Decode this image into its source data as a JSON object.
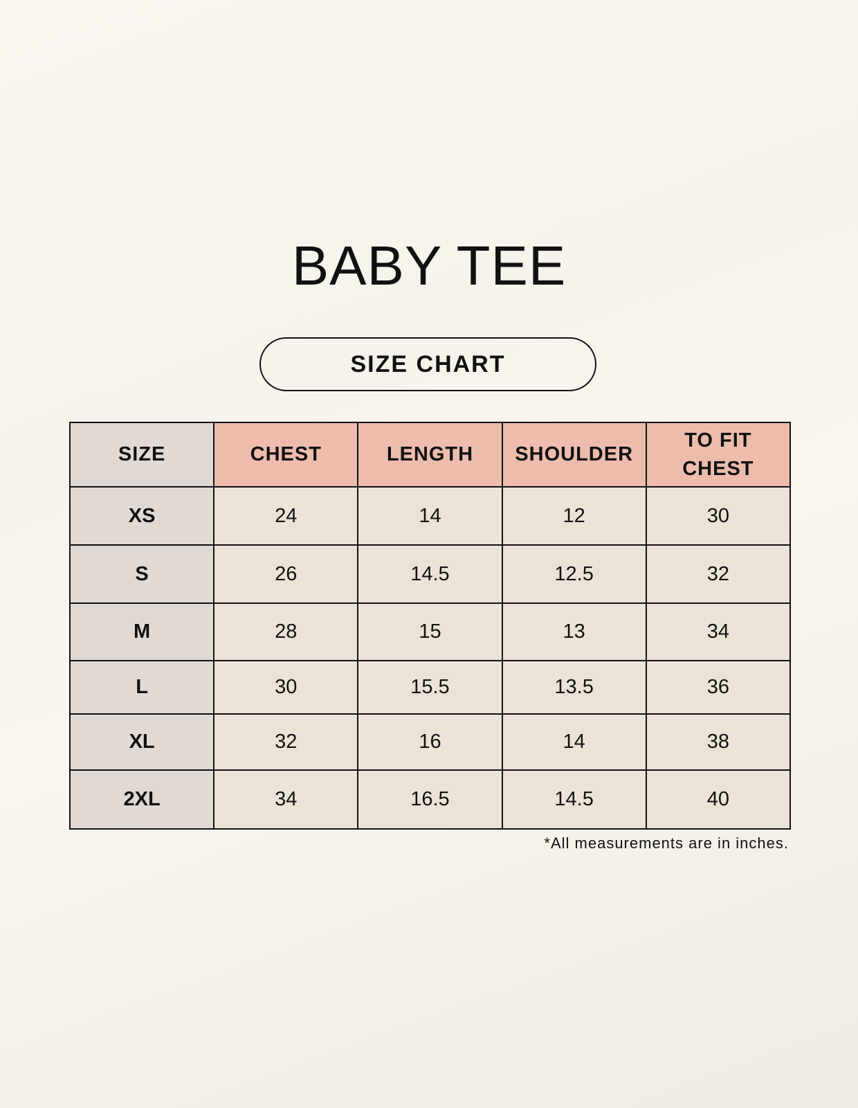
{
  "title": "BABY TEE",
  "subtitle": "SIZE CHART",
  "colors": {
    "header_accent": "#eebcad",
    "size_column": "#e1d9d4",
    "cell": "#ebe2d8"
  },
  "table": {
    "headers": [
      "SIZE",
      "CHEST",
      "LENGTH",
      "SHOULDER",
      "TO FIT CHEST"
    ],
    "rows": [
      [
        "XS",
        "24",
        "14",
        "12",
        "30"
      ],
      [
        "S",
        "26",
        "14.5",
        "12.5",
        "32"
      ],
      [
        "M",
        "28",
        "15",
        "13",
        "34"
      ],
      [
        "L",
        "30",
        "15.5",
        "13.5",
        "36"
      ],
      [
        "XL",
        "32",
        "16",
        "14",
        "38"
      ],
      [
        "2XL",
        "34",
        "16.5",
        "14.5",
        "40"
      ]
    ]
  },
  "footnote": "*All measurements are in inches."
}
